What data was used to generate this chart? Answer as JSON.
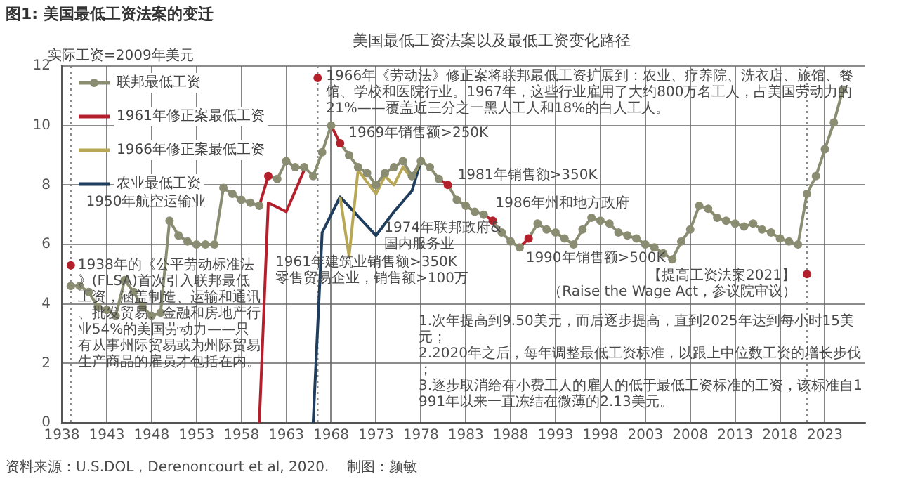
{
  "chart_data": {
    "type": "line",
    "title": "图1: 美国最低工资法案的变迁",
    "subtitle": "美国最低工资法案以及最低工资变化路径",
    "ylabel": "实际工资=2009年美元",
    "xlim": [
      1938,
      2027.5
    ],
    "xticks": [
      1938,
      1943,
      1948,
      1953,
      1958,
      1963,
      1968,
      1973,
      1978,
      1983,
      1988,
      1993,
      1998,
      2003,
      2008,
      2013,
      2018,
      2023
    ],
    "ylim": [
      0,
      12
    ],
    "yticks": [
      0,
      2,
      4,
      6,
      8,
      10,
      12
    ],
    "grid": true,
    "legend": "top left",
    "series": [
      {
        "name": "联邦最低工资",
        "color": "#8b8d72",
        "marker": "circle",
        "x": [
          1939,
          1940,
          1941,
          1942,
          1943,
          1944,
          1945,
          1946,
          1947,
          1948,
          1949,
          1950,
          1951,
          1952,
          1953,
          1954,
          1955,
          1956,
          1957,
          1958,
          1959,
          1960,
          1961,
          1962,
          1963,
          1964,
          1965,
          1966,
          1967,
          1968,
          1969,
          1970,
          1971,
          1972,
          1973,
          1974,
          1975,
          1976,
          1977,
          1978,
          1979,
          1980,
          1981,
          1982,
          1983,
          1984,
          1985,
          1986,
          1987,
          1988,
          1989,
          1990,
          1991,
          1992,
          1993,
          1994,
          1995,
          1996,
          1997,
          1998,
          1999,
          2000,
          2001,
          2002,
          2003,
          2004,
          2005,
          2006,
          2007,
          2008,
          2009,
          2010,
          2011,
          2012,
          2013,
          2014,
          2015,
          2016,
          2017,
          2018,
          2019,
          2020,
          2021,
          2022,
          2023,
          2024,
          2025
        ],
        "values": [
          4.6,
          4.6,
          4.4,
          3.9,
          3.8,
          3.6,
          4.8,
          4.4,
          3.9,
          3.6,
          3.7,
          6.8,
          6.3,
          6.1,
          6.0,
          6.0,
          6.0,
          7.9,
          7.7,
          7.5,
          7.4,
          7.3,
          8.3,
          8.2,
          8.8,
          8.6,
          8.6,
          8.3,
          9.1,
          10.0,
          9.4,
          9.0,
          8.6,
          8.4,
          8.0,
          8.4,
          8.6,
          8.8,
          8.3,
          8.8,
          8.6,
          8.2,
          8.0,
          7.5,
          7.3,
          7.1,
          7.0,
          6.8,
          6.4,
          6.1,
          5.9,
          6.2,
          6.7,
          6.5,
          6.4,
          6.2,
          6.0,
          6.5,
          6.9,
          6.8,
          6.7,
          6.4,
          6.3,
          6.2,
          6.0,
          5.9,
          5.7,
          5.5,
          6.1,
          6.5,
          7.3,
          7.2,
          6.9,
          6.8,
          6.7,
          6.6,
          6.7,
          6.5,
          6.4,
          6.2,
          6.1,
          6.0,
          7.7,
          8.3,
          9.2,
          10.1,
          11.2
        ],
        "colors": [
          "#8b8d72",
          "#8b8d72",
          "#8b8d72",
          "#8b8d72",
          "#8b8d72",
          "#8b8d72",
          "#8b8d72",
          "#8b8d72",
          "#8b8d72",
          "#8b8d72",
          "#8b8d72",
          "#8b8d72",
          "#8b8d72",
          "#8b8d72",
          "#8b8d72",
          "#8b8d72",
          "#8b8d72",
          "#8b8d72",
          "#8b8d72",
          "#8b8d72",
          "#8b8d72",
          "#8b8d72",
          "#b3202c",
          "#8b8d72",
          "#8b8d72",
          "#8b8d72",
          "#8b8d72",
          "#8b8d72",
          "#8b8d72",
          "#8b8d72",
          "#b3202c",
          "#8b8d72",
          "#8b8d72",
          "#8b8d72",
          "#8b8d72",
          "#8b8d72",
          "#8b8d72",
          "#8b8d72",
          "#8b8d72",
          "#8b8d72",
          "#8b8d72",
          "#8b8d72",
          "#b3202c",
          "#8b8d72",
          "#8b8d72",
          "#8b8d72",
          "#8b8d72",
          "#b3202c",
          "#8b8d72",
          "#8b8d72",
          "#8b8d72",
          "#b3202c",
          "#8b8d72",
          "#8b8d72",
          "#8b8d72",
          "#8b8d72",
          "#8b8d72",
          "#8b8d72",
          "#8b8d72",
          "#8b8d72",
          "#8b8d72",
          "#8b8d72",
          "#8b8d72",
          "#8b8d72",
          "#8b8d72",
          "#8b8d72",
          "#8b8d72",
          "#8b8d72",
          "#8b8d72",
          "#8b8d72",
          "#8b8d72",
          "#8b8d72",
          "#8b8d72",
          "#8b8d72",
          "#8b8d72",
          "#8b8d72",
          "#8b8d72",
          "#8b8d72",
          "#8b8d72",
          "#8b8d72",
          "#8b8d72",
          "#8b8d72",
          "#8b8d72",
          "#8b8d72",
          "#8b8d72",
          "#8b8d72",
          "#8b8d72"
        ]
      },
      {
        "name": "1961年修正案最低工资",
        "color": "#b3202c",
        "marker": "none",
        "x": [
          1960,
          1961,
          1963,
          1965
        ],
        "values": [
          0,
          7.4,
          7.1,
          8.5
        ]
      },
      {
        "name": "1966年修正案最低工资",
        "color": "#b8a855",
        "marker": "none",
        "x": [
          1969,
          1970,
          1971,
          1972,
          1973,
          1974,
          1975,
          1976,
          1977,
          1978
        ],
        "values": [
          7.6,
          5.6,
          8.5,
          8.1,
          7.7,
          8.3,
          8.0,
          8.6,
          8.2,
          8.8
        ]
      },
      {
        "name": "农业最低工资",
        "color": "#1f3d5c",
        "marker": "none",
        "x": [
          1966,
          1967,
          1969,
          1973,
          1975,
          1977,
          1978
        ],
        "values": [
          0,
          6.4,
          7.6,
          6.3,
          7.1,
          7.8,
          8.8
        ]
      }
    ],
    "ref_lines": [
      {
        "axis": "x",
        "value": 1939,
        "color": "#888888",
        "line_style": "dotted"
      },
      {
        "axis": "x",
        "value": 1966.5,
        "color": "#888888",
        "line_style": "dotted"
      },
      {
        "axis": "x",
        "value": 2021,
        "color": "#888888",
        "line_style": "dotted"
      }
    ],
    "annotations": [
      {
        "text": "1938年的《公平劳动标准法》(FLSA)首次引入联邦最低工资，涵盖制造、运输和通讯、批发贸易、金融和房地产行业54%的美国劳动力——只有从事州际贸易或为州际贸易生产商品的雇员才包括在内。",
        "x": 1939,
        "y": 5.3
      },
      {
        "text": "1950年航空运输业",
        "x": 1950,
        "y": 6.8
      },
      "1961年建筑业销售额>350K\n零售贸易企业，销售额>100万",
      {
        "text": "1969年销售额>250K",
        "x": 1969,
        "y": 9.4
      },
      {
        "text": "1974年联邦政府&\n国内服务业",
        "x": 1973,
        "y": 6.3
      },
      {
        "text": "1981年销售额>350K",
        "x": 1981,
        "y": 8.0
      },
      {
        "text": "1986年州和地方政府",
        "x": 1986,
        "y": 6.8
      },
      {
        "text": "1990年销售额>500K",
        "x": 1990,
        "y": 6.2
      },
      {
        "text": "1966年《劳动法》修正案将联邦最低工资扩展到：农业、疗养院、洗衣店、旅馆、餐馆、学校和医院行业。1967年，这些行业雇用了大约800万名工人，占美国劳动力的21%——覆盖近三分之一黑人工人和18%的白人工人。",
        "x": 1966.5,
        "y": 11.6
      },
      {
        "text": "【提高工资法案2021】",
        "x": 2021,
        "y": 5.0
      },
      "（Raise the Wage Act，参议院审议）",
      "1.次年提高到9.50美元，而后逐步提高，直到2025年达到每小时15美元；\n2.2020年之后，每年调整最低工资标准，以跟上中位数工资的增长步伐；\n3.逐步取消给有小费工人的雇人的低于最低工资标准的工资，该标准自1991年以来一直冻结在微薄的2.13美元。",
      "资料来源：U.S.DOL，Derenoncourt et al, 2020.    制图：颜敏"
    ]
  }
}
